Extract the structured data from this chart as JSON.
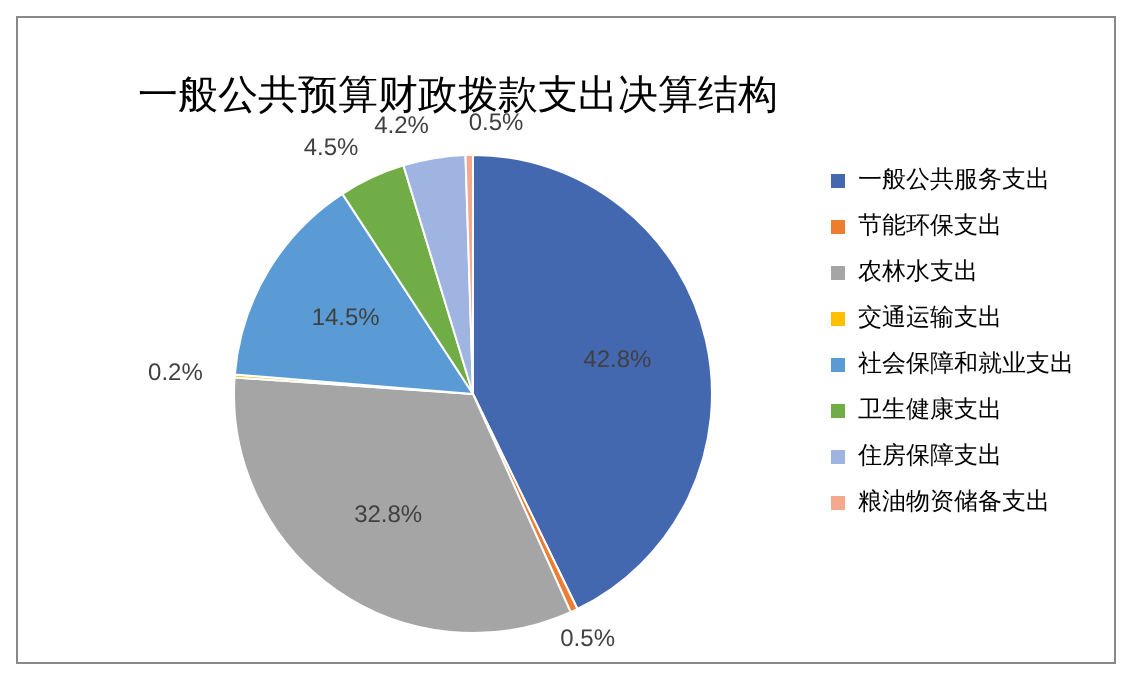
{
  "chart_data": {
    "type": "pie",
    "title": "一般公共预算财政拨款支出决算结构",
    "categories": [
      "一般公共服务支出",
      "节能环保支出",
      "农林水支出",
      "交通运输支出",
      "社会保障和就业支出",
      "卫生健康支出",
      "住房保障支出",
      "粮油物资储备支出"
    ],
    "values": [
      42.8,
      0.5,
      32.8,
      0.2,
      14.5,
      4.5,
      4.2,
      0.5
    ],
    "value_labels": [
      "42.8%",
      "0.5%",
      "32.8%",
      "0.2%",
      "14.5%",
      "4.5%",
      "4.2%",
      "0.5%"
    ],
    "colors": [
      "#4468b0",
      "#ed7d31",
      "#a5a5a5",
      "#ffc000",
      "#5b9bd5",
      "#70ad47",
      "#9fb4e0",
      "#f4a98f"
    ],
    "legend": "right"
  }
}
